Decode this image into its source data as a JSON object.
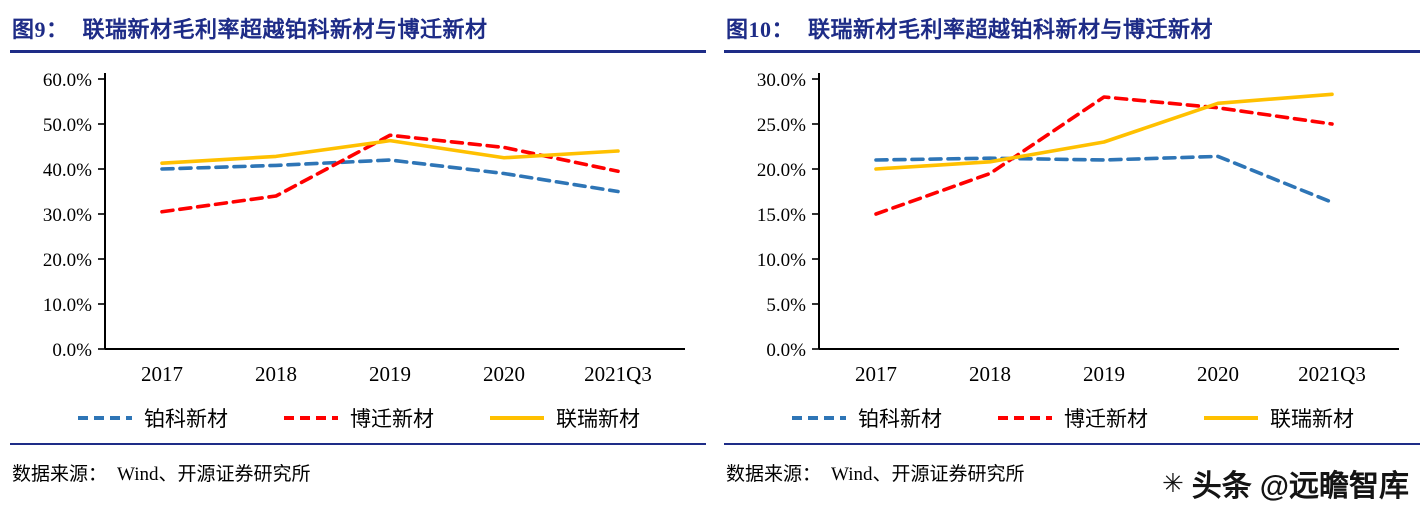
{
  "colors": {
    "title": "#1E2C87",
    "rule": "#1E2C87",
    "axis": "#000000",
    "series_blue": "#2E75B6",
    "series_red": "#FF0000",
    "series_yellow": "#FFC000"
  },
  "watermark": {
    "icon_char": "✳",
    "site": "头条",
    "handle": "@远瞻智库"
  },
  "charts": [
    {
      "figure_label": "图9：",
      "title": "联瑞新材毛利率超越铂科新材与博迁新材",
      "source_label": "数据来源：",
      "source_value": "Wind、开源证券研究所",
      "chart_data": {
        "type": "line",
        "title": "联瑞新材毛利率超越铂科新材与博迁新材",
        "categories": [
          "2017",
          "2018",
          "2019",
          "2020",
          "2021Q3"
        ],
        "xlabel": "",
        "ylabel": "",
        "ylim": [
          0,
          60
        ],
        "ytick_step": 10,
        "ytick_labels": [
          "0.0%",
          "10.0%",
          "20.0%",
          "30.0%",
          "40.0%",
          "50.0%",
          "60.0%"
        ],
        "grid": false,
        "legend_position": "bottom",
        "series": [
          {
            "name": "铂科新材",
            "color": "#2E75B6",
            "dash": true,
            "values": [
              40.0,
              40.8,
              42.0,
              39.0,
              35.0
            ]
          },
          {
            "name": "博迁新材",
            "color": "#FF0000",
            "dash": true,
            "values": [
              30.5,
              34.0,
              47.5,
              44.8,
              39.5
            ]
          },
          {
            "name": "联瑞新材",
            "color": "#FFC000",
            "dash": false,
            "values": [
              41.3,
              42.8,
              46.3,
              42.5,
              44.0
            ]
          }
        ]
      }
    },
    {
      "figure_label": "图10：",
      "title": "联瑞新材毛利率超越铂科新材与博迁新材",
      "source_label": "数据来源：",
      "source_value": "Wind、开源证券研究所",
      "chart_data": {
        "type": "line",
        "title": "联瑞新材毛利率超越铂科新材与博迁新材",
        "categories": [
          "2017",
          "2018",
          "2019",
          "2020",
          "2021Q3"
        ],
        "xlabel": "",
        "ylabel": "",
        "ylim": [
          0,
          30
        ],
        "ytick_step": 5,
        "ytick_labels": [
          "0.0%",
          "5.0%",
          "10.0%",
          "15.0%",
          "20.0%",
          "25.0%",
          "30.0%"
        ],
        "grid": false,
        "legend_position": "bottom",
        "series": [
          {
            "name": "铂科新材",
            "color": "#2E75B6",
            "dash": true,
            "values": [
              21.0,
              21.2,
              21.0,
              21.4,
              16.3
            ]
          },
          {
            "name": "博迁新材",
            "color": "#FF0000",
            "dash": true,
            "values": [
              15.0,
              19.5,
              28.0,
              26.8,
              25.0
            ]
          },
          {
            "name": "联瑞新材",
            "color": "#FFC000",
            "dash": false,
            "values": [
              20.0,
              20.8,
              23.0,
              27.3,
              28.3
            ]
          }
        ]
      }
    }
  ]
}
